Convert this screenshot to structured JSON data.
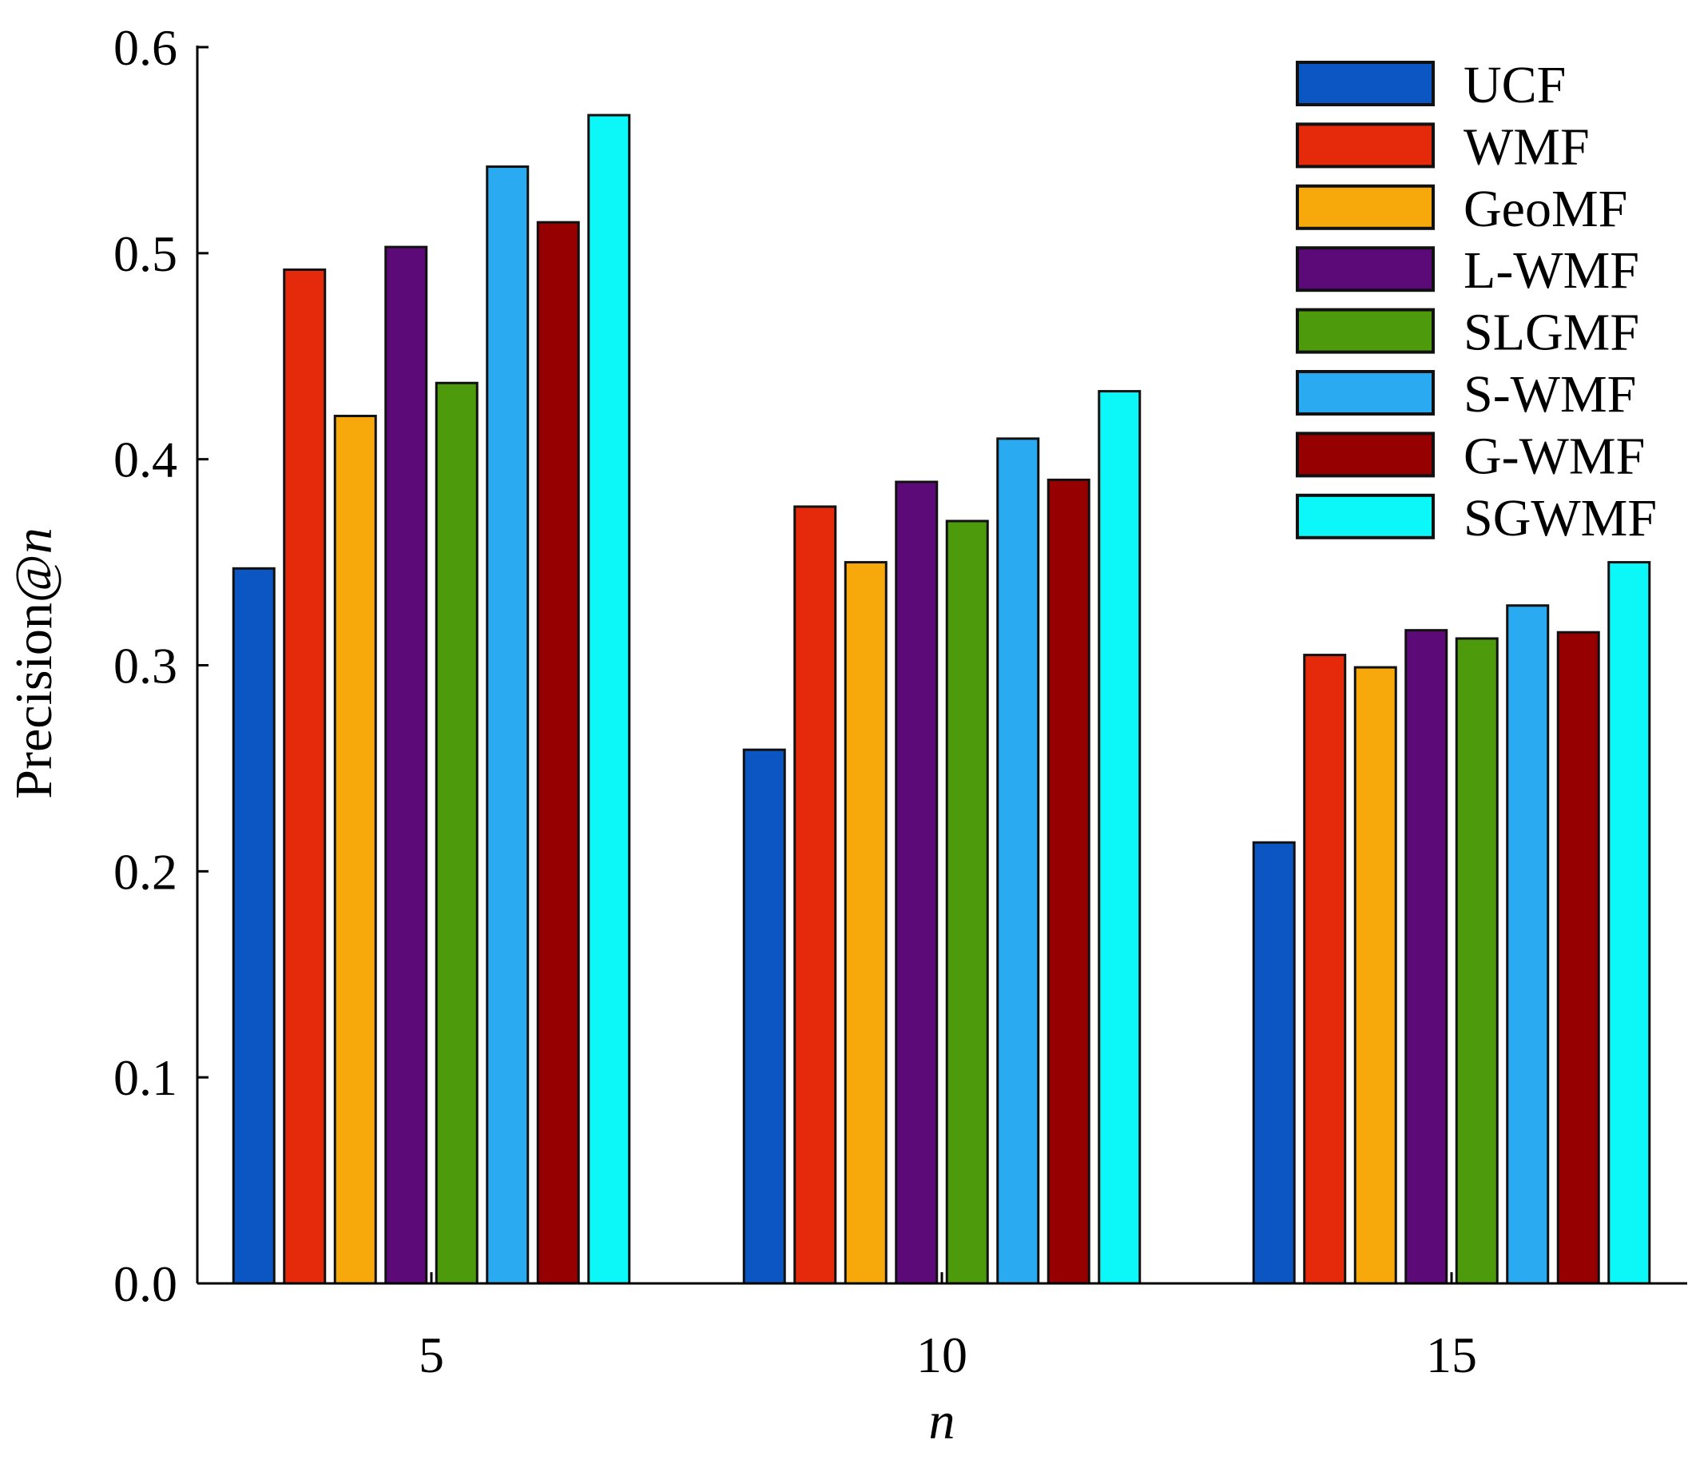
{
  "chart_data": {
    "type": "bar",
    "title": "",
    "xlabel": "n",
    "ylabel_prefix": "Precision@",
    "ylabel_var": "n",
    "ylim": [
      0,
      0.6
    ],
    "yticks": [
      "0.0",
      "0.1",
      "0.2",
      "0.3",
      "0.4",
      "0.5",
      "0.6"
    ],
    "categories": [
      "5",
      "10",
      "15"
    ],
    "legend_position": "top-right",
    "grid": false,
    "series": [
      {
        "name": "UCF",
        "color": "#0b56c2",
        "values": [
          0.347,
          0.259,
          0.214
        ]
      },
      {
        "name": "WMF",
        "color": "#e42a0a",
        "values": [
          0.492,
          0.377,
          0.305
        ]
      },
      {
        "name": "GeoMF",
        "color": "#f7a90c",
        "values": [
          0.421,
          0.35,
          0.299
        ]
      },
      {
        "name": "L-WMF",
        "color": "#5c0a78",
        "values": [
          0.503,
          0.389,
          0.317
        ]
      },
      {
        "name": "SLGMF",
        "color": "#4d9b0c",
        "values": [
          0.437,
          0.37,
          0.313
        ]
      },
      {
        "name": "S-WMF",
        "color": "#2aaaf0",
        "values": [
          0.542,
          0.41,
          0.329
        ]
      },
      {
        "name": "G-WMF",
        "color": "#960000",
        "values": [
          0.515,
          0.39,
          0.316
        ]
      },
      {
        "name": "SGWMF",
        "color": "#0cf8f8",
        "values": [
          0.567,
          0.433,
          0.35
        ]
      }
    ]
  }
}
